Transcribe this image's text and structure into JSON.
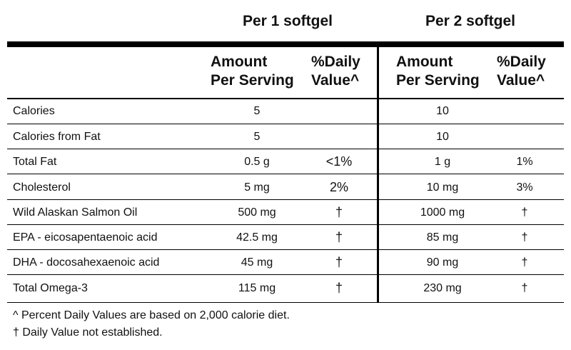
{
  "groups": {
    "per1": "Per 1 softgel",
    "per2": "Per 2 softgel"
  },
  "headers": {
    "amount_line1": "Amount",
    "amount_line2": "Per Serving",
    "dv_line1": "%Daily",
    "dv_line2": "Value^"
  },
  "rows": [
    {
      "label": "Calories",
      "amt1": "5",
      "dv1": "",
      "amt2": "10",
      "dv2": ""
    },
    {
      "label": "Calories from Fat",
      "amt1": "5",
      "dv1": "",
      "amt2": "10",
      "dv2": ""
    },
    {
      "label": "Total Fat",
      "amt1": "0.5 g",
      "dv1": "<1%",
      "amt2": "1 g",
      "dv2": "1%"
    },
    {
      "label": "Cholesterol",
      "amt1": "5 mg",
      "dv1": "2%",
      "amt2": "10 mg",
      "dv2": "3%"
    },
    {
      "label": "Wild Alaskan Salmon Oil",
      "amt1": "500 mg",
      "dv1": "†",
      "amt2": "1000 mg",
      "dv2": "†"
    },
    {
      "label": "EPA - eicosapentaenoic acid",
      "amt1": "42.5 mg",
      "dv1": "†",
      "amt2": "85 mg",
      "dv2": "†"
    },
    {
      "label": "DHA - docosahexaenoic acid",
      "amt1": "45 mg",
      "dv1": "†",
      "amt2": "90 mg",
      "dv2": "†"
    },
    {
      "label": "Total Omega-3",
      "amt1": "115 mg",
      "dv1": "†",
      "amt2": "230 mg",
      "dv2": "†"
    }
  ],
  "footnotes": {
    "dv_note": "^ Percent Daily Values are based on 2,000 calorie diet.",
    "dagger_note": "†  Daily Value not established."
  }
}
